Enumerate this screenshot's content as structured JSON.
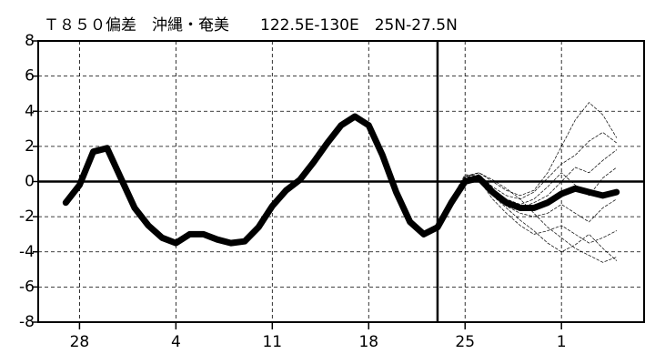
{
  "chart_data": {
    "type": "line",
    "title": "Ｔ８５０偏差　沖縄・奄美　　122.5E-130E　25N-27.5N",
    "xlim": [
      -3,
      41
    ],
    "xticks": [
      {
        "value": 0,
        "label": "28"
      },
      {
        "value": 7,
        "label": "4"
      },
      {
        "value": 14,
        "label": "11"
      },
      {
        "value": 21,
        "label": "18"
      },
      {
        "value": 28,
        "label": "25"
      },
      {
        "value": 35,
        "label": "1"
      }
    ],
    "ylim": [
      -8,
      8
    ],
    "yticks": [
      -8,
      -6,
      -4,
      -2,
      0,
      2,
      4,
      6,
      8
    ],
    "grid": true,
    "forecast_start": 26,
    "series": [
      {
        "color": "#000000",
        "width": 7,
        "dashed": false,
        "x": [
          -1,
          0,
          1,
          2,
          3,
          4,
          5,
          6,
          7,
          8,
          9,
          10,
          11,
          12,
          13,
          14,
          15,
          16,
          17,
          18,
          19,
          20,
          21,
          22,
          23,
          24,
          25,
          26,
          27,
          28,
          29,
          30,
          31,
          32,
          33,
          34,
          35,
          36,
          37,
          38,
          39
        ],
        "values": [
          -1.2,
          -0.2,
          1.7,
          1.9,
          0.2,
          -1.5,
          -2.5,
          -3.2,
          -3.5,
          -3.0,
          -3.0,
          -3.3,
          -3.5,
          -3.4,
          -2.6,
          -1.4,
          -0.5,
          0.1,
          1.1,
          2.2,
          3.2,
          3.7,
          3.2,
          1.5,
          -0.6,
          -2.3,
          -3.0,
          -2.6,
          -1.2,
          0.0,
          0.2,
          -0.6,
          -1.2,
          -1.5,
          -1.5,
          -1.2,
          -0.7,
          -0.4,
          -0.6,
          -0.8,
          -0.6
        ]
      },
      {
        "color": "#000000",
        "width": 0.7,
        "dashed": true,
        "x": [
          26,
          27,
          28,
          29,
          30,
          31,
          32,
          33,
          34,
          35,
          36,
          37,
          38,
          39
        ],
        "values": [
          -2.6,
          -1.0,
          0.3,
          0.5,
          0.0,
          -0.5,
          -0.8,
          -0.5,
          0.5,
          2.0,
          3.5,
          4.5,
          3.8,
          2.5
        ]
      },
      {
        "color": "#000000",
        "width": 0.7,
        "dashed": true,
        "x": [
          26,
          27,
          28,
          29,
          30,
          31,
          32,
          33,
          34,
          35,
          36,
          37,
          38,
          39
        ],
        "values": [
          -2.6,
          -1.3,
          0.1,
          0.2,
          -0.8,
          -1.5,
          -2.2,
          -2.8,
          -3.5,
          -4.0,
          -3.6,
          -3.0,
          -3.8,
          -4.5
        ]
      },
      {
        "color": "#000000",
        "width": 0.7,
        "dashed": true,
        "x": [
          26,
          27,
          28,
          29,
          30,
          31,
          32,
          33,
          34,
          35,
          36,
          37,
          38,
          39
        ],
        "values": [
          -2.6,
          -1.1,
          0.2,
          0.4,
          -0.3,
          -0.8,
          -1.0,
          -0.6,
          0.2,
          1.0,
          1.5,
          2.3,
          2.8,
          2.2
        ]
      },
      {
        "color": "#000000",
        "width": 0.7,
        "dashed": true,
        "x": [
          26,
          27,
          28,
          29,
          30,
          31,
          32,
          33,
          34,
          35,
          36,
          37,
          38,
          39
        ],
        "values": [
          -2.6,
          -1.2,
          0.0,
          0.1,
          -1.0,
          -1.8,
          -2.5,
          -3.0,
          -2.8,
          -2.5,
          -3.0,
          -3.5,
          -3.2,
          -2.8
        ]
      },
      {
        "color": "#000000",
        "width": 0.7,
        "dashed": true,
        "x": [
          26,
          27,
          28,
          29,
          30,
          31,
          32,
          33,
          34,
          35,
          36,
          37,
          38,
          39
        ],
        "values": [
          -2.6,
          -1.0,
          0.4,
          0.3,
          -0.4,
          -1.2,
          -1.5,
          -1.2,
          -0.8,
          0.0,
          0.8,
          0.5,
          1.2,
          1.8
        ]
      },
      {
        "color": "#000000",
        "width": 0.7,
        "dashed": true,
        "x": [
          26,
          27,
          28,
          29,
          30,
          31,
          32,
          33,
          34,
          35,
          36,
          37,
          38,
          39
        ],
        "values": [
          -2.6,
          -1.3,
          -0.1,
          0.0,
          -0.6,
          -1.4,
          -1.8,
          -2.0,
          -1.8,
          -1.3,
          -1.8,
          -2.3,
          -1.5,
          -1.0
        ]
      },
      {
        "color": "#000000",
        "width": 0.7,
        "dashed": true,
        "x": [
          26,
          27,
          28,
          29,
          30,
          31,
          32,
          33,
          34,
          35,
          36,
          37,
          38,
          39
        ],
        "values": [
          -2.6,
          -1.1,
          0.2,
          0.5,
          0.1,
          -0.4,
          -1.0,
          -1.8,
          -2.6,
          -3.2,
          -3.8,
          -4.2,
          -4.6,
          -4.3
        ]
      },
      {
        "color": "#000000",
        "width": 0.7,
        "dashed": true,
        "x": [
          26,
          27,
          28,
          29,
          30,
          31,
          32,
          33,
          34,
          35,
          36,
          37,
          38,
          39
        ],
        "values": [
          -2.6,
          -1.2,
          0.3,
          0.2,
          -0.5,
          -1.0,
          -1.3,
          -1.0,
          -0.3,
          0.5,
          -0.2,
          -0.8,
          0.2,
          0.8
        ]
      }
    ]
  }
}
